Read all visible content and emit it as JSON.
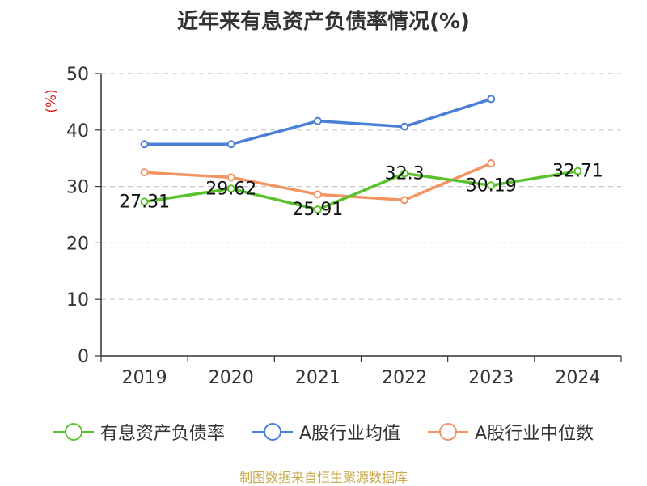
{
  "chart_data": {
    "type": "line",
    "title": "近年来有息资产负债率情况(%)",
    "ylabel": "(%)",
    "xlabel": "",
    "categories": [
      "2019",
      "2020",
      "2021",
      "2022",
      "2023",
      "2024"
    ],
    "ylim": [
      0,
      50
    ],
    "yticks": [
      0,
      10,
      20,
      30,
      40,
      50
    ],
    "grid": true,
    "legend_position": "bottom",
    "series": [
      {
        "name": "有息资产负债率",
        "color": "#5bc22e",
        "values": [
          27.31,
          29.62,
          25.91,
          32.3,
          30.19,
          32.71
        ],
        "show_labels": true
      },
      {
        "name": "A股行业均值",
        "color": "#4a7fd6",
        "values": [
          37.5,
          37.5,
          41.6,
          40.6,
          45.5,
          null
        ],
        "show_labels": false
      },
      {
        "name": "A股行业中位数",
        "color": "#f39563",
        "values": [
          32.5,
          31.6,
          28.6,
          27.6,
          34.1,
          null
        ],
        "show_labels": false
      }
    ]
  },
  "source": "制图数据来自恒生聚源数据库"
}
